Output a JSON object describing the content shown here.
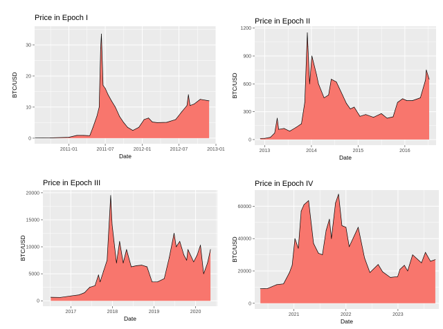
{
  "colors": {
    "panel": "#ebebeb",
    "grid": "#ffffff",
    "fill": "#f8766d",
    "line": "#000000"
  },
  "chart_data": [
    {
      "type": "area",
      "title": "Price in Epoch I",
      "xlabel": "Date",
      "ylabel": "BTC/USD",
      "xlim": [
        "2010-07-15",
        "2013-01-01"
      ],
      "ylim": [
        -1.8,
        36
      ],
      "xticks": [
        {
          "date": "2011-01-01",
          "label": "2011-01"
        },
        {
          "date": "2011-07-01",
          "label": "2011-07"
        },
        {
          "date": "2012-01-01",
          "label": "2012-01"
        },
        {
          "date": "2012-07-01",
          "label": "2012-07"
        },
        {
          "date": "2013-01-01",
          "label": "2013-01"
        }
      ],
      "yticks": [
        0,
        10,
        20,
        30
      ],
      "x": [
        "2010-07-18",
        "2010-10-01",
        "2011-01-01",
        "2011-02-10",
        "2011-03-15",
        "2011-04-15",
        "2011-05-01",
        "2011-05-20",
        "2011-06-01",
        "2011-06-08",
        "2011-06-12",
        "2011-06-20",
        "2011-07-01",
        "2011-07-15",
        "2011-08-01",
        "2011-08-20",
        "2011-09-10",
        "2011-10-01",
        "2011-10-20",
        "2011-11-15",
        "2011-12-15",
        "2012-01-10",
        "2012-02-01",
        "2012-02-20",
        "2012-03-15",
        "2012-05-01",
        "2012-06-15",
        "2012-07-15",
        "2012-08-10",
        "2012-08-17",
        "2012-08-25",
        "2012-09-15",
        "2012-10-15",
        "2012-11-28"
      ],
      "values": [
        0.05,
        0.1,
        0.3,
        0.9,
        0.9,
        0.8,
        3.5,
        7.0,
        10.0,
        29.0,
        33.5,
        17.0,
        16.0,
        14.0,
        12.0,
        10.0,
        7.0,
        5.0,
        3.5,
        2.5,
        3.5,
        6.0,
        6.5,
        5.2,
        5.0,
        5.1,
        6.0,
        8.5,
        10.5,
        14.0,
        10.5,
        11.0,
        12.5,
        12.0
      ]
    },
    {
      "type": "area",
      "title": "Price in Epoch II",
      "xlabel": "Date",
      "ylabel": "BTC/USD",
      "xlim": [
        "2012-10-15",
        "2016-09-01"
      ],
      "ylim": [
        -60,
        1220
      ],
      "xticks": [
        {
          "date": "2013-01-01",
          "label": "2013"
        },
        {
          "date": "2014-01-01",
          "label": "2014"
        },
        {
          "date": "2015-01-01",
          "label": "2015"
        },
        {
          "date": "2016-01-01",
          "label": "2016"
        }
      ],
      "yticks": [
        0,
        300,
        600,
        900,
        1200
      ],
      "x": [
        "2012-11-28",
        "2013-01-01",
        "2013-02-15",
        "2013-03-20",
        "2013-04-09",
        "2013-04-20",
        "2013-06-01",
        "2013-07-15",
        "2013-09-01",
        "2013-10-15",
        "2013-11-10",
        "2013-11-30",
        "2013-12-05",
        "2013-12-18",
        "2014-01-05",
        "2014-02-10",
        "2014-02-25",
        "2014-04-10",
        "2014-05-15",
        "2014-06-05",
        "2014-07-15",
        "2014-09-01",
        "2014-10-01",
        "2014-11-01",
        "2014-12-01",
        "2015-01-15",
        "2015-03-01",
        "2015-05-01",
        "2015-07-01",
        "2015-08-15",
        "2015-10-01",
        "2015-11-05",
        "2015-12-15",
        "2016-01-15",
        "2016-03-01",
        "2016-05-01",
        "2016-06-10",
        "2016-06-17",
        "2016-07-09"
      ],
      "values": [
        12,
        13,
        25,
        70,
        230,
        110,
        120,
        90,
        130,
        170,
        400,
        1150,
        1000,
        600,
        900,
        700,
        600,
        450,
        480,
        650,
        620,
        480,
        390,
        330,
        350,
        250,
        270,
        240,
        280,
        230,
        245,
        400,
        440,
        420,
        420,
        450,
        640,
        750,
        650
      ]
    },
    {
      "type": "area",
      "title": "Price in Epoch III",
      "xlabel": "Date",
      "ylabel": "BTC/USD",
      "xlim": [
        "2016-05-01",
        "2020-07-10"
      ],
      "ylim": [
        -1000,
        20500
      ],
      "xticks": [
        {
          "date": "2017-01-01",
          "label": "2017"
        },
        {
          "date": "2018-01-01",
          "label": "2018"
        },
        {
          "date": "2019-01-01",
          "label": "2019"
        },
        {
          "date": "2020-01-01",
          "label": "2020"
        }
      ],
      "yticks": [
        0,
        5000,
        10000,
        15000,
        20000
      ],
      "x": [
        "2016-07-09",
        "2016-10-01",
        "2017-01-01",
        "2017-03-15",
        "2017-05-01",
        "2017-06-15",
        "2017-08-01",
        "2017-09-01",
        "2017-09-15",
        "2017-10-15",
        "2017-11-15",
        "2017-12-17",
        "2017-12-30",
        "2018-01-15",
        "2018-02-06",
        "2018-03-05",
        "2018-04-06",
        "2018-05-05",
        "2018-06-15",
        "2018-08-01",
        "2018-09-15",
        "2018-11-01",
        "2018-12-15",
        "2019-02-01",
        "2019-04-01",
        "2019-05-15",
        "2019-06-26",
        "2019-07-15",
        "2019-08-15",
        "2019-09-20",
        "2019-10-15",
        "2019-10-26",
        "2019-12-15",
        "2020-01-15",
        "2020-02-13",
        "2020-03-12",
        "2020-04-15",
        "2020-05-11"
      ],
      "values": [
        650,
        620,
        900,
        1100,
        1500,
        2500,
        2800,
        4800,
        3500,
        5500,
        7500,
        19500,
        14000,
        11000,
        7000,
        11000,
        7000,
        9500,
        6300,
        6500,
        6600,
        6300,
        3500,
        3500,
        4100,
        8000,
        12500,
        10000,
        11000,
        8500,
        7500,
        9500,
        7200,
        8500,
        10300,
        5000,
        7000,
        9500
      ]
    },
    {
      "type": "area",
      "title": "Price in Epoch IV",
      "xlabel": "Date",
      "ylabel": "BTC/USD",
      "xlim": [
        "2020-04-01",
        "2023-10-15"
      ],
      "ylim": [
        -3500,
        70000
      ],
      "xticks": [
        {
          "date": "2021-01-01",
          "label": "2021"
        },
        {
          "date": "2022-01-01",
          "label": "2022"
        },
        {
          "date": "2023-01-01",
          "label": "2023"
        }
      ],
      "yticks": [
        0,
        20000,
        40000,
        60000
      ],
      "x": [
        "2020-05-11",
        "2020-07-01",
        "2020-09-01",
        "2020-10-20",
        "2020-12-01",
        "2020-12-20",
        "2021-01-08",
        "2021-02-01",
        "2021-02-21",
        "2021-03-13",
        "2021-04-14",
        "2021-05-19",
        "2021-06-22",
        "2021-07-20",
        "2021-08-15",
        "2021-09-07",
        "2021-09-21",
        "2021-10-20",
        "2021-11-10",
        "2021-12-04",
        "2022-01-01",
        "2022-01-24",
        "2022-03-28",
        "2022-05-12",
        "2022-06-18",
        "2022-08-15",
        "2022-09-15",
        "2022-11-09",
        "2022-12-30",
        "2023-01-15",
        "2023-02-15",
        "2023-03-10",
        "2023-04-14",
        "2023-06-15",
        "2023-07-13",
        "2023-08-17",
        "2023-09-20"
      ],
      "values": [
        9000,
        9200,
        11500,
        12000,
        19000,
        23500,
        40000,
        34000,
        57000,
        61000,
        63500,
        37000,
        31000,
        30000,
        45000,
        52000,
        40000,
        62000,
        67500,
        48000,
        47000,
        35000,
        47000,
        28000,
        19000,
        24000,
        19500,
        16000,
        16500,
        21000,
        23500,
        20000,
        30000,
        25000,
        31500,
        26000,
        27000
      ]
    }
  ]
}
